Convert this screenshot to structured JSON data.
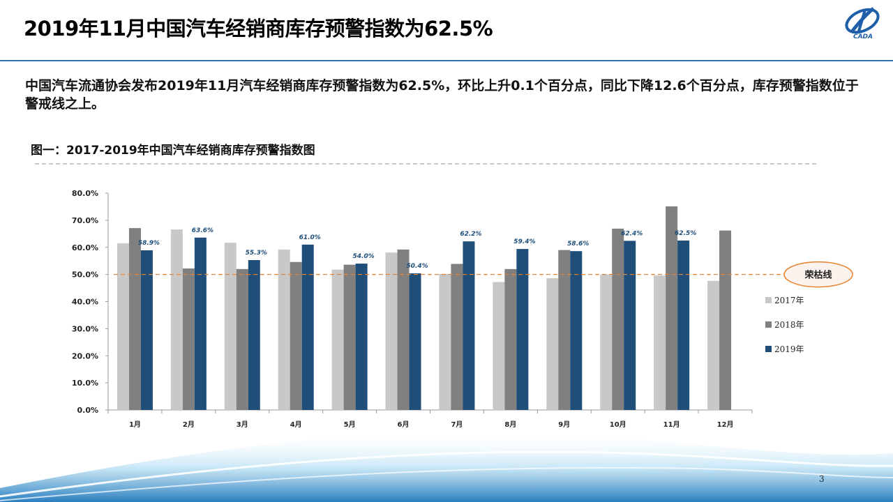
{
  "slide": {
    "title": "2019年11月中国汽车经销商库存预警指数为62.5%",
    "summary": "中国汽车流通协会发布2019年11月汽车经销商库存预警指数为62.5%，环比上升0.1个百分点，同比下降12.6个百分点，库存预警指数位于警戒线之上。",
    "logo_text": "CADA",
    "page_number": "3",
    "figure_title": "图一：2017-2019年中国汽车经销商库存预警指数图"
  },
  "colors": {
    "s2017": "#c8c8c8",
    "s2018": "#808080",
    "s2019": "#1f4e79",
    "threshold": "#e8822e",
    "title_rule": "#2f6fb2"
  },
  "chart_data": {
    "type": "bar",
    "title": "",
    "categories": [
      "1月",
      "2月",
      "3月",
      "4月",
      "5月",
      "6月",
      "7月",
      "8月",
      "9月",
      "10月",
      "11月",
      "12月"
    ],
    "series": [
      {
        "name": "2017年",
        "values": [
          61.5,
          66.6,
          61.7,
          59.2,
          51.8,
          58.1,
          50.2,
          47.2,
          48.6,
          50.0,
          49.6,
          47.6
        ]
      },
      {
        "name": "2018年",
        "values": [
          67.1,
          52.2,
          52.0,
          54.6,
          53.6,
          59.2,
          53.9,
          52.0,
          59.0,
          66.9,
          75.1,
          66.2
        ]
      },
      {
        "name": "2019年",
        "values": [
          58.9,
          63.6,
          55.3,
          61.0,
          54.0,
          50.4,
          62.2,
          59.4,
          58.6,
          62.4,
          62.5,
          null
        ]
      }
    ],
    "data_labels": [
      "58.9%",
      "63.6%",
      "55.3%",
      "61.0%",
      "54.0%",
      "50.4%",
      "62.2%",
      "59.4%",
      "58.6%",
      "62.4%",
      "62.5%",
      ""
    ],
    "yticks": [
      "0.0%",
      "10.0%",
      "20.0%",
      "30.0%",
      "40.0%",
      "50.0%",
      "60.0%",
      "70.0%",
      "80.0%"
    ],
    "ylim": [
      0,
      80
    ],
    "threshold": {
      "value": 50,
      "label": "荣枯线"
    },
    "legend_position": "right",
    "grid": false,
    "xlabel": "",
    "ylabel": ""
  }
}
